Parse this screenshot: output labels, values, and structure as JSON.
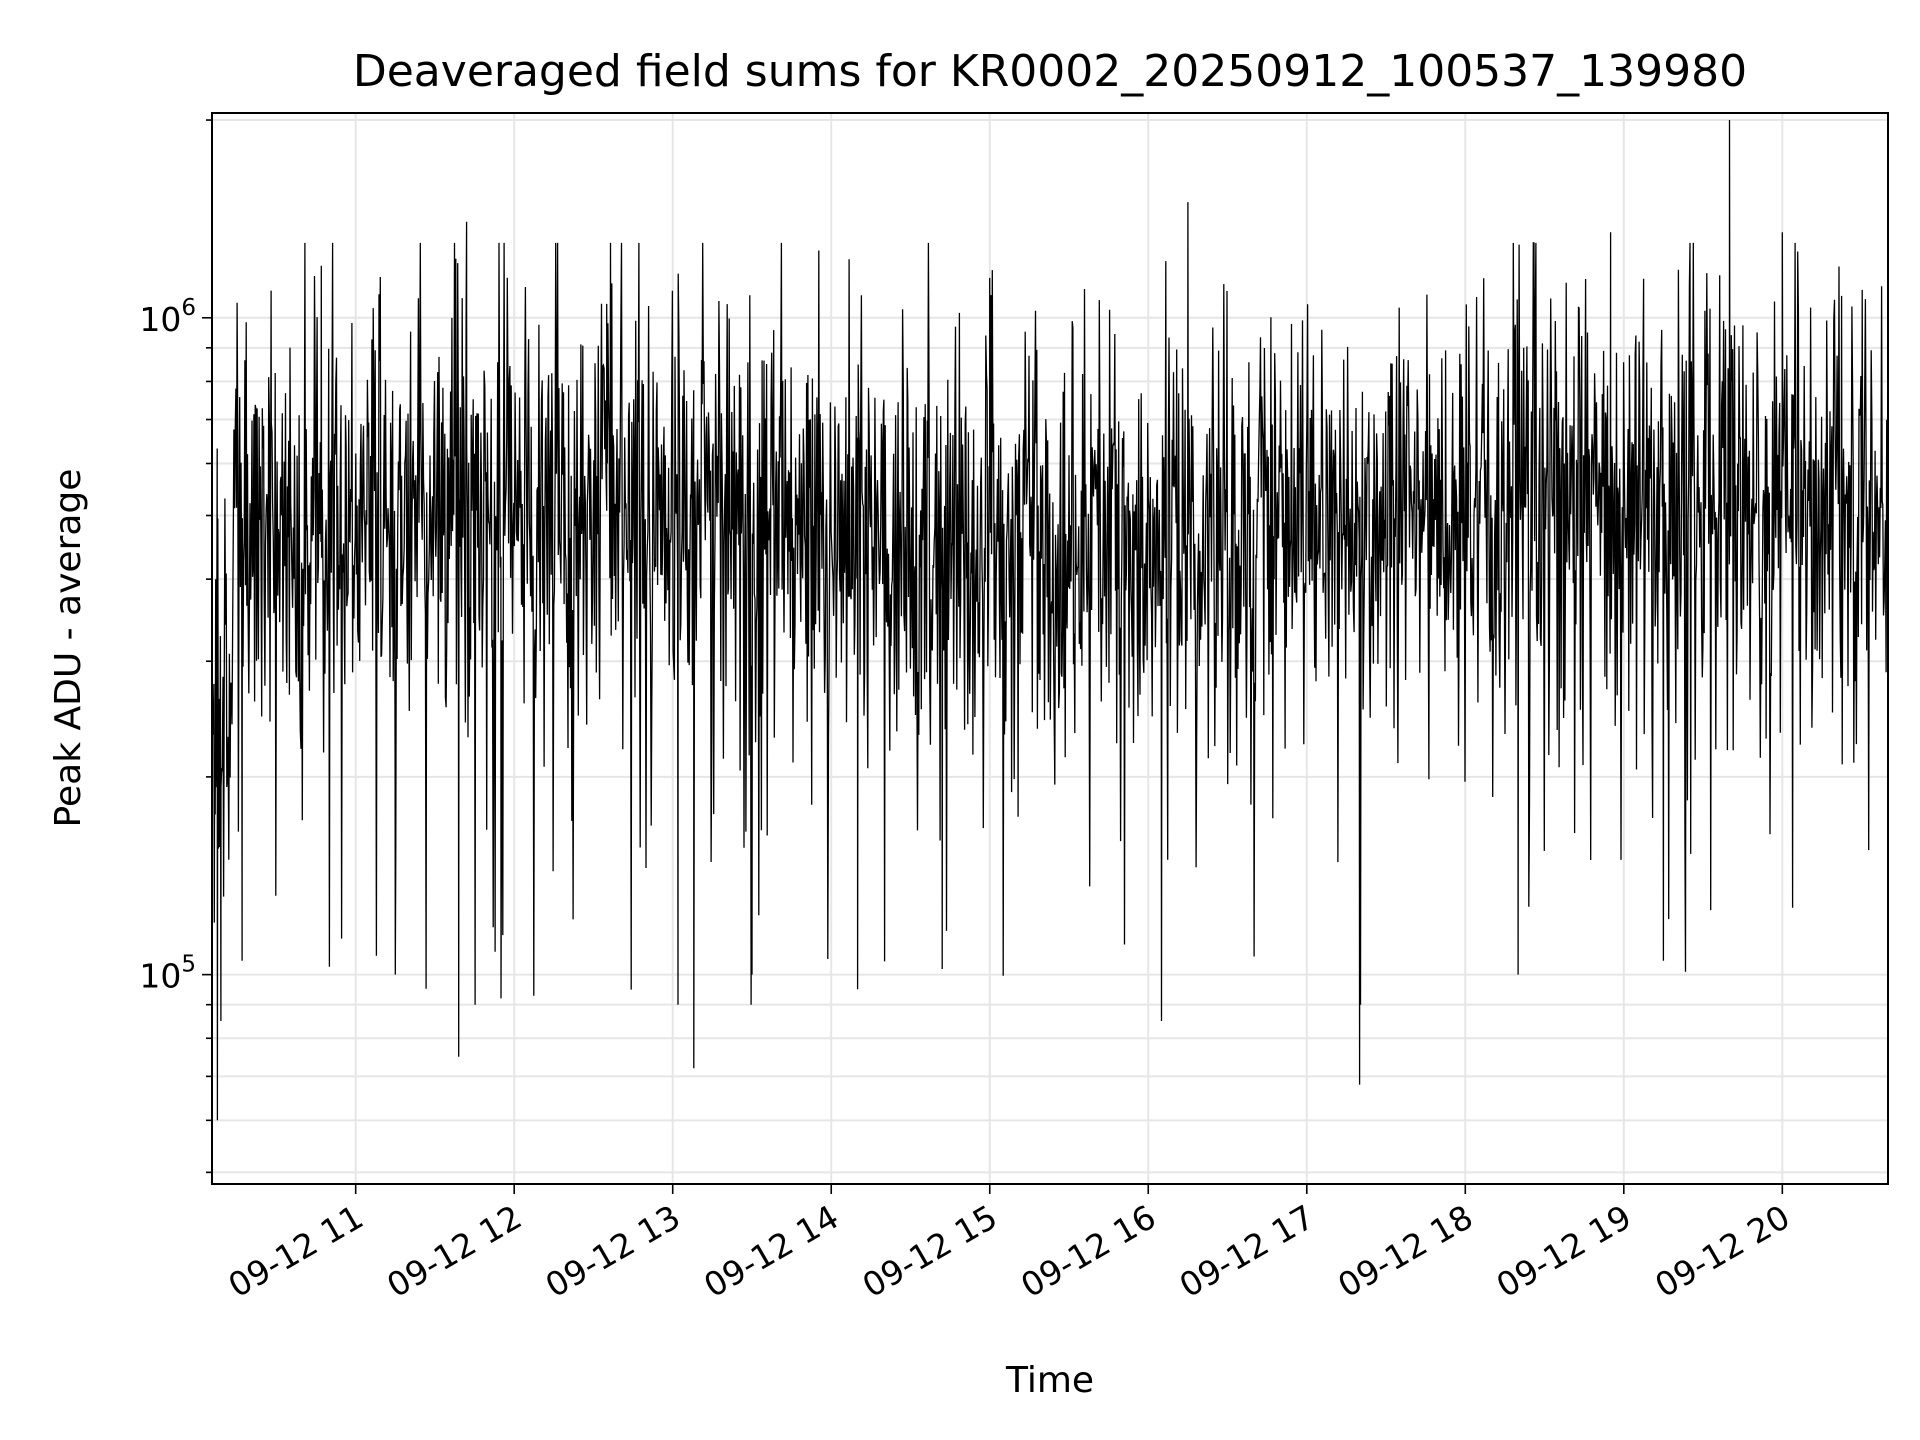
{
  "chart_data": {
    "type": "line",
    "title": "Deaveraged field sums for KR0002_20250912_100537_139980",
    "xlabel": "Time",
    "ylabel": "Peak ADU - average",
    "yscale": "log",
    "xlim": [
      "2025-09-12 10:05:37",
      "2025-09-12 20:40:00"
    ],
    "ylim": [
      48000,
      2050000
    ],
    "grid": true,
    "line_color": "#000000",
    "x_ticks": [
      "09-12 11",
      "09-12 12",
      "09-12 13",
      "09-12 14",
      "09-12 15",
      "09-12 16",
      "09-12 17",
      "09-12 18",
      "09-12 19",
      "09-12 20"
    ],
    "y_ticks": [
      {
        "value": 100000,
        "base": "10",
        "exp": "5"
      },
      {
        "value": 1000000,
        "base": "10",
        "exp": "6"
      }
    ],
    "series": [
      {
        "typical_range": [
          250000,
          850000
        ],
        "points": [
          {
            "x": "2025-09-12 10:05:37",
            "y": 300000
          },
          {
            "x": "2025-09-12 10:06:30",
            "y": 120000
          },
          {
            "x": "2025-09-12 10:07:00",
            "y": 400000
          },
          {
            "x": "2025-09-12 10:07:40",
            "y": 60000
          },
          {
            "x": "2025-09-12 10:09:00",
            "y": 85000
          },
          {
            "x": "2025-09-12 10:14:00",
            "y": 560000
          },
          {
            "x": "2025-09-12 10:17:00",
            "y": 105000
          },
          {
            "x": "2025-09-12 10:28:00",
            "y": 1100000
          },
          {
            "x": "2025-09-12 10:47:00",
            "y": 1200000
          },
          {
            "x": "2025-09-12 11:15:00",
            "y": 100000
          },
          {
            "x": "2025-09-12 11:39:00",
            "y": 75000
          },
          {
            "x": "2025-09-12 11:42:00",
            "y": 1400000
          },
          {
            "x": "2025-09-12 11:55:00",
            "y": 92000
          },
          {
            "x": "2025-09-12 12:35:00",
            "y": 1050000
          },
          {
            "x": "2025-09-12 13:02:00",
            "y": 90000
          },
          {
            "x": "2025-09-12 13:08:00",
            "y": 72000
          },
          {
            "x": "2025-09-12 13:30:00",
            "y": 100000
          },
          {
            "x": "2025-09-12 14:10:00",
            "y": 95000
          },
          {
            "x": "2025-09-12 14:42:00",
            "y": 102000
          },
          {
            "x": "2025-09-12 15:00:00",
            "y": 1150000
          },
          {
            "x": "2025-09-12 16:05:00",
            "y": 85000
          },
          {
            "x": "2025-09-12 16:15:00",
            "y": 1500000
          },
          {
            "x": "2025-09-12 17:20:00",
            "y": 68000
          },
          {
            "x": "2025-09-12 18:20:00",
            "y": 100000
          },
          {
            "x": "2025-09-12 18:55:00",
            "y": 1350000
          },
          {
            "x": "2025-09-12 19:15:00",
            "y": 105000
          },
          {
            "x": "2025-09-12 19:40:00",
            "y": 2000000
          },
          {
            "x": "2025-09-12 20:00:00",
            "y": 1350000
          },
          {
            "x": "2025-09-12 20:40:00",
            "y": 500000
          }
        ]
      }
    ]
  }
}
